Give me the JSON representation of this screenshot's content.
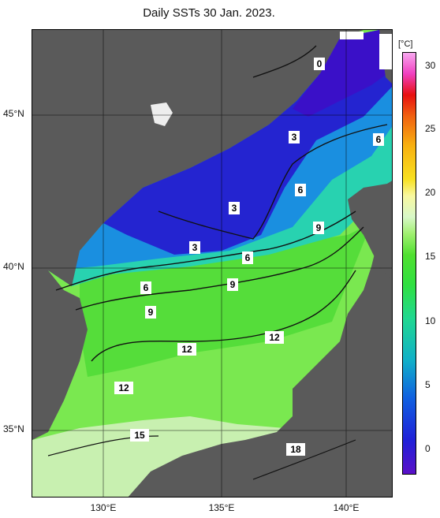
{
  "title": "Daily SSTs 30 Jan. 2023.",
  "lat_labels": [
    "45°N",
    "40°N",
    "35°N"
  ],
  "lon_labels": [
    "130°E",
    "135°E",
    "140°E"
  ],
  "colorbar": {
    "unit": "[°C]",
    "ticks": [
      "30",
      "25",
      "20",
      "15",
      "10",
      "5",
      "0"
    ],
    "range": [
      -2,
      31
    ],
    "colors": [
      "#5a10c8",
      "#2020d8",
      "#10b0c8",
      "#30e040",
      "#d8f8c8",
      "#f8e020",
      "#e81010",
      "#f8a8f0"
    ]
  },
  "isotherm_labels": [
    "0",
    "3",
    "3",
    "3",
    "6",
    "6",
    "6",
    "6",
    "9",
    "9",
    "9",
    "12",
    "12",
    "12",
    "15",
    "18"
  ],
  "colors": {
    "land": "#5a5a5a",
    "missing": "#ffffff"
  }
}
